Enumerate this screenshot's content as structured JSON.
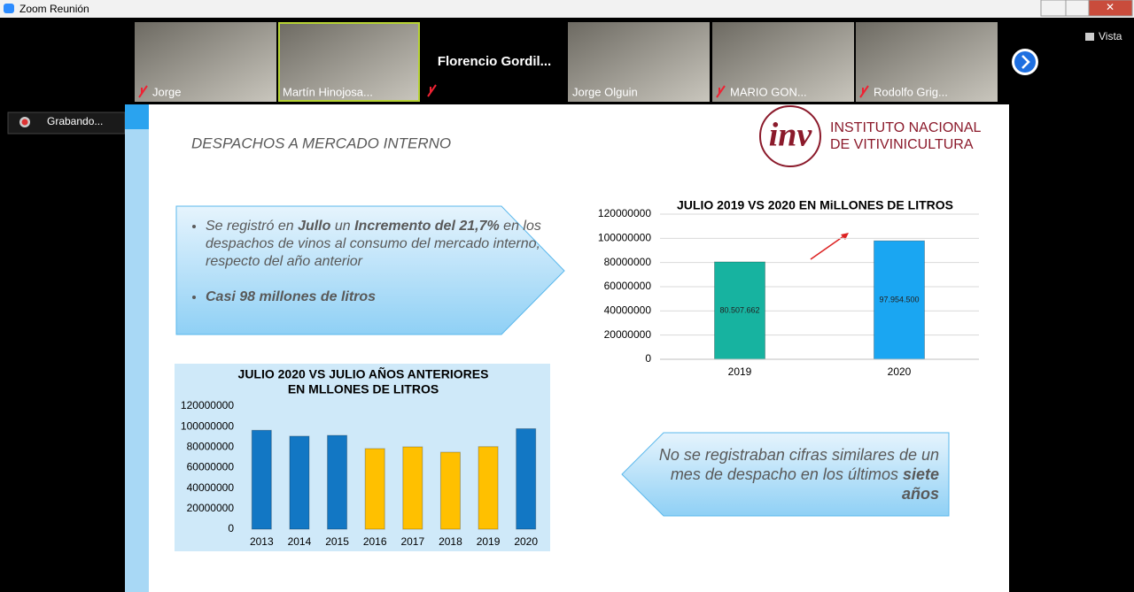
{
  "window": {
    "title": "Zoom Reunión",
    "view": "Vista",
    "recording": "Grabando..."
  },
  "participants": [
    {
      "name": "Jorge",
      "muted": true,
      "video": true,
      "active": false
    },
    {
      "name": "Martín Hinojosa...",
      "muted": false,
      "video": true,
      "active": true
    },
    {
      "name": "Florencio  Gordil...",
      "muted": true,
      "video": false,
      "active": false
    },
    {
      "name": "Jorge Olguin",
      "muted": false,
      "video": true,
      "active": false
    },
    {
      "name": "MARIO GON...",
      "muted": true,
      "video": true,
      "active": false
    },
    {
      "name": "Rodolfo Grig...",
      "muted": true,
      "video": true,
      "active": false
    }
  ],
  "slide": {
    "title": "DESPACHOS A MERCADO INTERNO",
    "logo": {
      "mark": "inv",
      "line1": "INSTITUTO NACIONAL",
      "line2": "DE VITIVINICULTURA"
    },
    "bullets": [
      {
        "runs": [
          {
            "text": "Se registró en ",
            "bold": false
          },
          {
            "text": "Jullo",
            "bold": true
          },
          {
            "text": " un ",
            "bold": false
          },
          {
            "text": "Incremento del 21,7%",
            "bold": true
          },
          {
            "text": " en los despachos de vinos al consumo del mercado interno, respecto del año anterior",
            "bold": false
          }
        ]
      },
      {
        "runs": [
          {
            "text": "Casi 98 millones de litros",
            "bold": true
          }
        ]
      }
    ],
    "callout": {
      "runs": [
        {
          "text": "No se registraban cifras similares de un mes de despacho  en los últimos ",
          "bold": false
        },
        {
          "text": "siete años",
          "bold": true
        }
      ]
    },
    "chart_a": {
      "type": "bar",
      "title": [
        "JULIO 2019 VS 2020 EN MiLLONES DE  LITROS"
      ],
      "categories": [
        "2019",
        "2020"
      ],
      "values": [
        80507662,
        97954500
      ],
      "value_labels": [
        "80.507.662",
        "97.954.500"
      ],
      "colors": [
        "#17b3a0",
        "#1aa6f2"
      ],
      "ylim": [
        0,
        120000000
      ],
      "yticks": [
        0,
        20000000,
        40000000,
        60000000,
        80000000,
        100000000,
        120000000
      ],
      "grid": true
    },
    "chart_b": {
      "type": "bar",
      "title": [
        "JULIO 2020 VS JULIO AÑOS ANTERIORES",
        "EN MLLONES  DE LITROS"
      ],
      "categories": [
        "2013",
        "2014",
        "2015",
        "2016",
        "2017",
        "2018",
        "2019",
        "2020"
      ],
      "values": [
        96500000,
        90700000,
        91500000,
        78600000,
        80300000,
        75100000,
        80500000,
        98000000
      ],
      "colors": [
        "#1277c4",
        "#1277c4",
        "#1277c4",
        "#ffc000",
        "#ffc000",
        "#ffc000",
        "#ffc000",
        "#1277c4"
      ],
      "ylim": [
        0,
        120000000
      ],
      "yticks": [
        0,
        20000000,
        40000000,
        60000000,
        80000000,
        100000000,
        120000000
      ],
      "grid": false
    }
  }
}
